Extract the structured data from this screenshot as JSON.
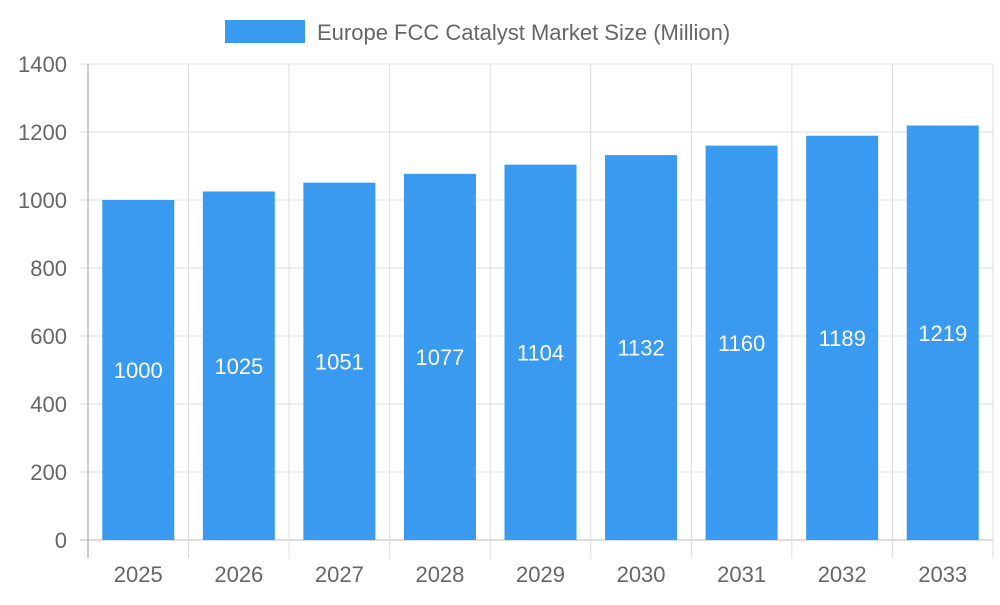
{
  "chart_data": {
    "type": "bar",
    "title": "",
    "xlabel": "",
    "ylabel": "",
    "categories": [
      "2025",
      "2026",
      "2027",
      "2028",
      "2029",
      "2030",
      "2031",
      "2032",
      "2033"
    ],
    "series": [
      {
        "name": "Europe FCC Catalyst Market Size (Million)",
        "values": [
          1000,
          1025,
          1051,
          1077,
          1104,
          1132,
          1160,
          1189,
          1219
        ]
      }
    ],
    "ylim": [
      0,
      1400
    ],
    "yticks": [
      0,
      200,
      400,
      600,
      800,
      1000,
      1200,
      1400
    ],
    "grid": true,
    "legend_position": "top",
    "data_labels": true,
    "colors": {
      "bar": "#399af0",
      "label": "#ffffff",
      "tick": "#666666",
      "grid": "#dddddd"
    }
  }
}
